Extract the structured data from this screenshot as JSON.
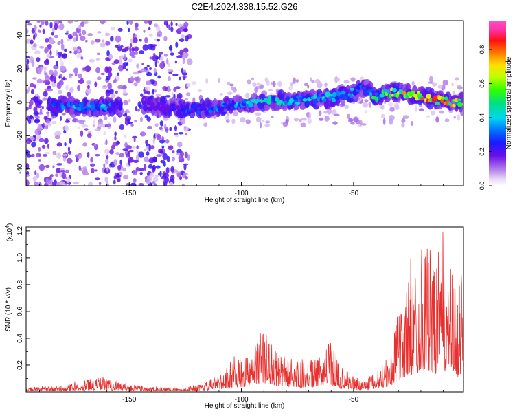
{
  "title": "C2E4.2024.338.15.52.G26",
  "chart_data": [
    {
      "type": "heatmap",
      "xlabel": "Height of straight line (km)",
      "ylabel": "Frequency (Hz)",
      "xlim": [
        -196,
        -1
      ],
      "ylim": [
        -50,
        49
      ],
      "x_ticks": [
        -150,
        -100,
        -50
      ],
      "x_tick_labels": [
        "-150",
        "-100",
        "-50"
      ],
      "y_ticks": [
        -40,
        -20,
        0,
        20,
        40
      ],
      "y_tick_labels": [
        "-40",
        "-20",
        "0",
        "20",
        "40"
      ],
      "colorbar": {
        "label": "Normalized spectral amplitude",
        "range": [
          0,
          0.97
        ],
        "ticks": [
          0.0,
          0.2,
          0.4,
          0.6,
          0.8
        ],
        "tick_labels": [
          "0.0",
          "0.2",
          "0.4",
          "0.6",
          "0.8"
        ],
        "colormap": "rainbow (white-violet-blue-cyan-green-yellow-red-pink)"
      },
      "ridge": [
        {
          "x": -186,
          "y": -2,
          "a": 0.3
        },
        {
          "x": -180,
          "y": -2,
          "a": 0.35
        },
        {
          "x": -174,
          "y": -3,
          "a": 0.38
        },
        {
          "x": -168,
          "y": -3,
          "a": 0.35
        },
        {
          "x": -162,
          "y": -3,
          "a": 0.38
        },
        {
          "x": -156,
          "y": -2,
          "a": 0.3
        },
        {
          "x": -140,
          "y": -2,
          "a": 0.2
        },
        {
          "x": -130,
          "y": -3,
          "a": 0.25
        },
        {
          "x": -122,
          "y": -4,
          "a": 0.32
        },
        {
          "x": -115,
          "y": -4,
          "a": 0.35
        },
        {
          "x": -108,
          "y": -3,
          "a": 0.4
        },
        {
          "x": -100,
          "y": -1,
          "a": 0.42
        },
        {
          "x": -92,
          "y": 0,
          "a": 0.45
        },
        {
          "x": -84,
          "y": 1,
          "a": 0.45
        },
        {
          "x": -76,
          "y": 1,
          "a": 0.42
        },
        {
          "x": -68,
          "y": 2,
          "a": 0.42
        },
        {
          "x": -60,
          "y": 3,
          "a": 0.4
        },
        {
          "x": -52,
          "y": 5,
          "a": 0.4
        },
        {
          "x": -46,
          "y": 9,
          "a": 0.3
        },
        {
          "x": -40,
          "y": 4,
          "a": 0.55
        },
        {
          "x": -34,
          "y": 6,
          "a": 0.7
        },
        {
          "x": -28,
          "y": 6,
          "a": 0.75
        },
        {
          "x": -22,
          "y": 4,
          "a": 0.7
        },
        {
          "x": -16,
          "y": 2,
          "a": 0.85
        },
        {
          "x": -10,
          "y": 1,
          "a": 0.9
        },
        {
          "x": -5,
          "y": 0,
          "a": 0.7
        },
        {
          "x": -2,
          "y": 0,
          "a": 0.5
        }
      ]
    },
    {
      "type": "line",
      "xlabel": "Height of straight line (km)",
      "ylabel": "SNR (10 * v/v)",
      "y_multiplier": "(x10",
      "y_multiplier_exp": "4",
      "y_multiplier_close": ")",
      "xlim": [
        -196,
        -1
      ],
      "ylim": [
        0,
        1.23
      ],
      "x_ticks": [
        -150,
        -100,
        -50
      ],
      "x_tick_labels": [
        "-150",
        "-100",
        "-50"
      ],
      "y_ticks": [
        0.2,
        0.4,
        0.6,
        0.8,
        1.0,
        1.2
      ],
      "y_tick_labels": [
        "0.2",
        "0.4",
        "0.6",
        "0.8",
        "1.0",
        "1.2"
      ],
      "series": [
        {
          "color": "#e8302e",
          "envelope": [
            {
              "x": -196,
              "y": 0.03
            },
            {
              "x": -180,
              "y": 0.04
            },
            {
              "x": -170,
              "y": 0.08
            },
            {
              "x": -162,
              "y": 0.1
            },
            {
              "x": -150,
              "y": 0.05
            },
            {
              "x": -135,
              "y": 0.03
            },
            {
              "x": -125,
              "y": 0.03
            },
            {
              "x": -118,
              "y": 0.05
            },
            {
              "x": -110,
              "y": 0.12
            },
            {
              "x": -103,
              "y": 0.22
            },
            {
              "x": -96,
              "y": 0.25
            },
            {
              "x": -92,
              "y": 0.42
            },
            {
              "x": -88,
              "y": 0.4
            },
            {
              "x": -84,
              "y": 0.25
            },
            {
              "x": -78,
              "y": 0.22
            },
            {
              "x": -72,
              "y": 0.2
            },
            {
              "x": -66,
              "y": 0.22
            },
            {
              "x": -61,
              "y": 0.35
            },
            {
              "x": -56,
              "y": 0.18
            },
            {
              "x": -50,
              "y": 0.1
            },
            {
              "x": -44,
              "y": 0.08
            },
            {
              "x": -38,
              "y": 0.18
            },
            {
              "x": -34,
              "y": 0.25
            },
            {
              "x": -30,
              "y": 0.55
            },
            {
              "x": -26,
              "y": 0.75
            },
            {
              "x": -22,
              "y": 0.9
            },
            {
              "x": -18,
              "y": 1.1
            },
            {
              "x": -14,
              "y": 0.85
            },
            {
              "x": -10,
              "y": 1.1
            },
            {
              "x": -6,
              "y": 0.8
            },
            {
              "x": -3,
              "y": 0.65
            },
            {
              "x": -1,
              "y": 0.85
            }
          ]
        }
      ]
    }
  ]
}
